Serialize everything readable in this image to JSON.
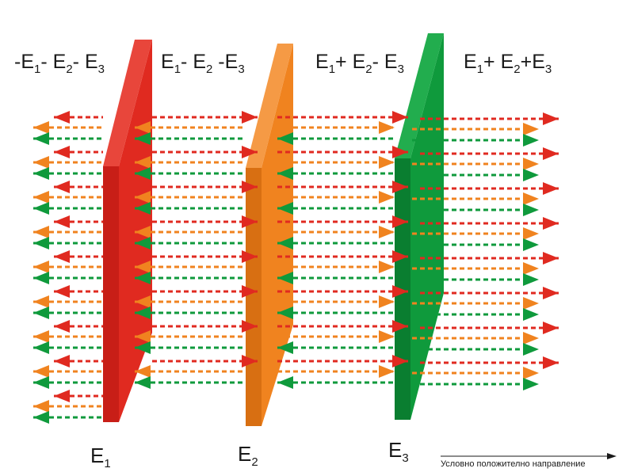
{
  "regions": [
    {
      "sign_a": "-",
      "a": "E",
      "a_sub": "1",
      "sign_b": "-",
      "b": "E",
      "b_sub": "2",
      "sign_c": "-",
      "c": "E",
      "c_sub": "3"
    },
    {
      "sign_a": "",
      "a": "E",
      "a_sub": "1",
      "sign_b": "-",
      "b": "E",
      "b_sub": "2",
      "sign_c": "-",
      "c": "E",
      "c_sub": "3"
    },
    {
      "sign_a": "",
      "a": "E",
      "a_sub": "1",
      "sign_b": "+",
      "b": "E",
      "b_sub": "2",
      "sign_c": "-",
      "c": "E",
      "c_sub": "3"
    },
    {
      "sign_a": "",
      "a": "E",
      "a_sub": "1",
      "sign_b": "+",
      "b": "E",
      "b_sub": "2",
      "sign_c": "+",
      "c": "E",
      "c_sub": "3"
    }
  ],
  "plates": [
    {
      "name": "E",
      "sub": "1",
      "color": "#e02a20",
      "dark": "#c81e17"
    },
    {
      "name": "E",
      "sub": "2",
      "color": "#f0831f",
      "dark": "#d86f12"
    },
    {
      "name": "E",
      "sub": "3",
      "color": "#0f9a3c",
      "dark": "#0a7e30"
    }
  ],
  "caption": "Условно положително направление",
  "colors": {
    "red": "#e02a20",
    "orange": "#f0831f",
    "green": "#0f9a3c"
  }
}
